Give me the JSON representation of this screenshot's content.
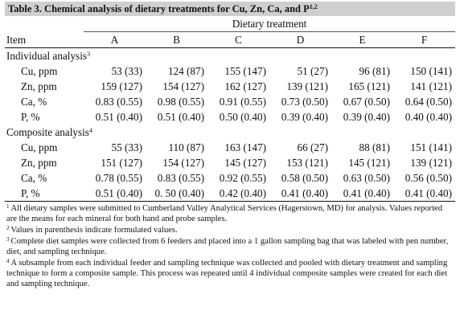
{
  "title": {
    "text": "Table 3. Chemical analysis of dietary treatments for Cu, Zn, Ca, and P",
    "sup": "1,2"
  },
  "header": {
    "item_label": "Item",
    "group_label": "Dietary treatment",
    "columns": [
      "A",
      "B",
      "C",
      "D",
      "E",
      "F"
    ]
  },
  "sections": [
    {
      "label": "Individual analysis",
      "sup": "3",
      "rows": [
        {
          "label": "Cu, ppm",
          "values": [
            "53 (33)",
            "124 (87)",
            "155 (147)",
            "51 (27)",
            "96 (81)",
            "150 (141)"
          ]
        },
        {
          "label": "Zn, ppm",
          "values": [
            "159 (127)",
            "154 (127)",
            "162 (127)",
            "139 (121)",
            "165 (121)",
            "141 (121)"
          ]
        },
        {
          "label": "Ca, %",
          "values": [
            "0.83 (0.55)",
            "0.98 (0.55)",
            "0.91 (0.55)",
            "0.73 (0.50)",
            "0.67 (0.50)",
            "0.64 (0.50)"
          ]
        },
        {
          "label": "P, %",
          "values": [
            "0.51 (0.40)",
            "0.51 (0.40)",
            "0.50 (0.40)",
            "0.39 (0.40)",
            "0.39 (0.40)",
            "0.40 (0.40)"
          ]
        }
      ]
    },
    {
      "label": "Composite analysis",
      "sup": "4",
      "rows": [
        {
          "label": "Cu, ppm",
          "values": [
            "55 (33)",
            "110 (87)",
            "163 (147)",
            "66 (27)",
            "88 (81)",
            "151 (141)"
          ]
        },
        {
          "label": "Zn, ppm",
          "values": [
            "151 (127)",
            "154 (127)",
            "145 (127)",
            "153 (121)",
            "145 (121)",
            "139 (121)"
          ]
        },
        {
          "label": "Ca, %",
          "values": [
            "0.78 (0.55)",
            "0.83 (0.55)",
            "0.92 (0.55)",
            "0.58 (0.50)",
            "0.63 (0.50)",
            "0.56 (0.50)"
          ]
        },
        {
          "label": "P, %",
          "values": [
            "0.51 (0.40)",
            "0. 50 (0.40)",
            "0.42 (0.40)",
            "0.41 (0.40)",
            "0.41 (0.40)",
            "0.41 (0.40)"
          ]
        }
      ]
    }
  ],
  "footnotes": [
    {
      "sup": "1",
      "text": "All dietary samples were submitted to Cumberland Valley Analytical Services (Hagerstown, MD) for analysis. Values reported are the means for each mineral for both hand and probe samples."
    },
    {
      "sup": "2",
      "text": "Values in parenthesis indicate formulated values."
    },
    {
      "sup": "3",
      "text": "Complete diet samples were collected from 6 feeders and placed into a 1 gallon sampling bag that was labeled with pen number, diet, and sampling technique."
    },
    {
      "sup": "4",
      "text": "A subsample from each individual feeder and sampling technique was collected and pooled with dietary treatment and sampling technique to form a composite sample. This process was repeated until 4 individual composite samples were created for each diet and sampling technique."
    }
  ]
}
